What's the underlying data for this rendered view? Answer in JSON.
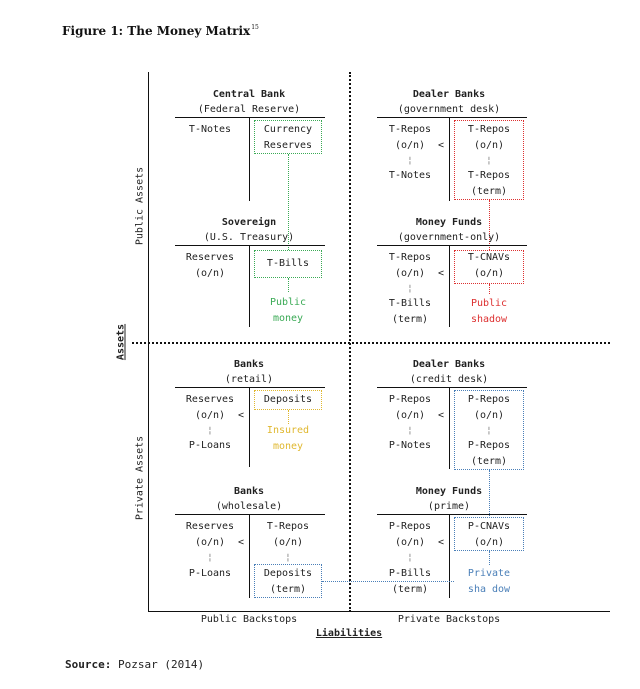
{
  "figure": {
    "title": "Figure 1: The Money Matrix",
    "footnote": "15"
  },
  "axes": {
    "public_assets": "Public Assets",
    "private_assets": "Private Assets",
    "assets": "Assets",
    "public_backstops": "Public Backstops",
    "private_backstops": "Private Backstops",
    "liabilities": "Liabilities"
  },
  "central_bank": {
    "title": "Central Bank",
    "subtitle": "(Federal Reserve)",
    "left": "T-Notes",
    "right_1": "Currency",
    "right_2": "Reserves"
  },
  "dealer_gov": {
    "title": "Dealer Banks",
    "subtitle": "(government desk)",
    "l1": "T-Repos",
    "l2": "(o/n)",
    "l3": "T-Notes",
    "r1": "T-Repos",
    "r2": "(o/n)",
    "r3": "T-Repos",
    "r4": "(term)"
  },
  "sovereign": {
    "title": "Sovereign",
    "subtitle": "(U.S. Treasury)",
    "l1": "Reserves",
    "l2": "(o/n)",
    "right": "T-Bills",
    "money_1": "Public",
    "money_2": "money"
  },
  "mmf_gov": {
    "title": "Money Funds",
    "subtitle": "(government-only)",
    "l1": "T-Repos",
    "l2": "(o/n)",
    "l3": "T-Bills",
    "l4": "(term)",
    "r1": "T-CNAVs",
    "r2": "(o/n)",
    "shadow_1": "Public",
    "shadow_2": "shadow"
  },
  "banks_retail": {
    "title": "Banks",
    "subtitle": "(retail)",
    "l1": "Reserves",
    "l2": "(o/n)",
    "l3": "P-Loans",
    "right": "Deposits",
    "ins_1": "Insured",
    "ins_2": "money"
  },
  "dealer_credit": {
    "title": "Dealer Banks",
    "subtitle": "(credit desk)",
    "l1": "P-Repos",
    "l2": "(o/n)",
    "l3": "P-Notes",
    "r1": "P-Repos",
    "r2": "(o/n)",
    "r3": "P-Repos",
    "r4": "(term)"
  },
  "banks_wholesale": {
    "title": "Banks",
    "subtitle": "(wholesale)",
    "l1": "Reserves",
    "l2": "(o/n)",
    "l3": "P-Loans",
    "r1": "T-Repos",
    "r2": "(o/n)",
    "r3": "Deposits",
    "r4": "(term)"
  },
  "mmf_prime": {
    "title": "Money Funds",
    "subtitle": "(prime)",
    "l1": "P-Repos",
    "l2": "(o/n)",
    "l3": "P-Bills",
    "l4": "(term)",
    "r1": "P-CNAVs",
    "r2": "(o/n)",
    "sh_1": "Private",
    "sh_2": "sha dow"
  },
  "symbols": {
    "lt": "<"
  },
  "source": {
    "label": "Source:",
    "text": "Pozsar (2014)"
  },
  "colors": {
    "green": "#3aaa55",
    "yellow": "#e0b830",
    "red": "#dd3030",
    "blue": "#4a7fb8"
  }
}
